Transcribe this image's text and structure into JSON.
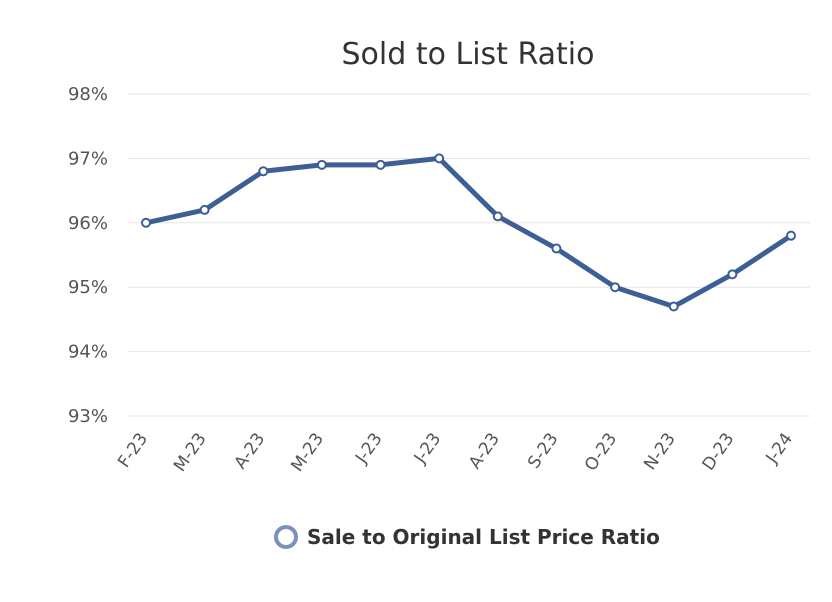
{
  "chart_data": {
    "type": "line",
    "title": "Sold to List Ratio",
    "xlabel": "",
    "ylabel": "",
    "categories": [
      "F-23",
      "M-23",
      "A-23",
      "M-23",
      "J-23",
      "J-23",
      "A-23",
      "S-23",
      "O-23",
      "N-23",
      "D-23",
      "J-24"
    ],
    "ylim": [
      93,
      98
    ],
    "yticks": [
      "93%",
      "94%",
      "95%",
      "96%",
      "97%",
      "98%"
    ],
    "grid": true,
    "legend_position": "bottom",
    "series": [
      {
        "name": "Sale to Original List Price Ratio",
        "color": "#3d5f96",
        "values": [
          96.0,
          96.2,
          96.8,
          96.9,
          96.9,
          97.0,
          96.1,
          95.6,
          95.0,
          94.7,
          95.2,
          95.8
        ]
      }
    ]
  }
}
